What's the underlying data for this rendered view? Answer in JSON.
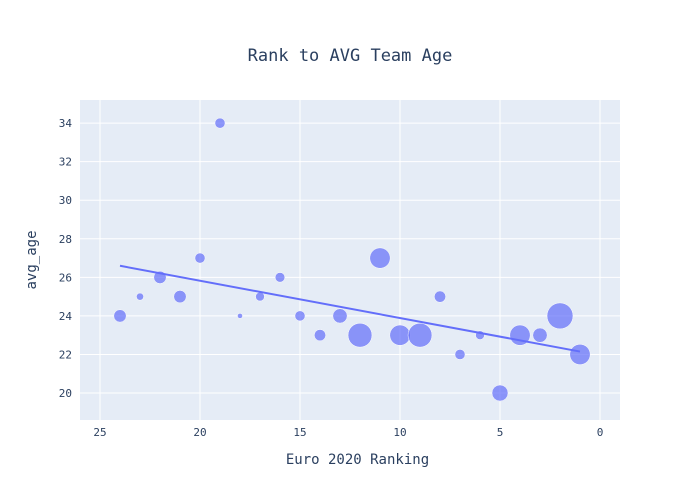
{
  "chart_data": {
    "type": "scatter",
    "title": "Rank to AVG Team Age",
    "xlabel": "Euro 2020 Ranking",
    "ylabel": "avg_age",
    "xlim": [
      26,
      -1
    ],
    "ylim": [
      18.6,
      35.2
    ],
    "x_ticks": [
      25,
      20,
      15,
      10,
      5,
      0
    ],
    "y_ticks": [
      20,
      22,
      24,
      26,
      28,
      30,
      32,
      34
    ],
    "grid": true,
    "marker_color": "#636efa",
    "plot_bgcolor": "#e5ecf6",
    "series": [
      {
        "mode": "markers",
        "points": [
          {
            "x": 24,
            "y": 24,
            "size": 3
          },
          {
            "x": 23,
            "y": 25,
            "size": 1
          },
          {
            "x": 22,
            "y": 26,
            "size": 3
          },
          {
            "x": 21,
            "y": 25,
            "size": 3
          },
          {
            "x": 20,
            "y": 27,
            "size": 2
          },
          {
            "x": 19,
            "y": 34,
            "size": 2
          },
          {
            "x": 18,
            "y": 24,
            "size": 0.5
          },
          {
            "x": 17,
            "y": 25,
            "size": 1.5
          },
          {
            "x": 16,
            "y": 26,
            "size": 1.8
          },
          {
            "x": 15,
            "y": 24,
            "size": 2
          },
          {
            "x": 14,
            "y": 23,
            "size": 2.5
          },
          {
            "x": 13,
            "y": 24,
            "size": 4
          },
          {
            "x": 12,
            "y": 23,
            "size": 11
          },
          {
            "x": 11,
            "y": 27,
            "size": 8
          },
          {
            "x": 10,
            "y": 23,
            "size": 8
          },
          {
            "x": 9,
            "y": 23,
            "size": 11
          },
          {
            "x": 8,
            "y": 25,
            "size": 2.5
          },
          {
            "x": 7,
            "y": 22,
            "size": 2
          },
          {
            "x": 6,
            "y": 23,
            "size": 1.5
          },
          {
            "x": 5,
            "y": 20,
            "size": 5
          },
          {
            "x": 4,
            "y": 23,
            "size": 8
          },
          {
            "x": 3,
            "y": 23,
            "size": 4
          },
          {
            "x": 2,
            "y": 24,
            "size": 13
          },
          {
            "x": 1,
            "y": 22,
            "size": 8
          }
        ]
      },
      {
        "mode": "lines",
        "x": [
          24,
          1
        ],
        "y": [
          26.6,
          22.15
        ]
      }
    ]
  }
}
